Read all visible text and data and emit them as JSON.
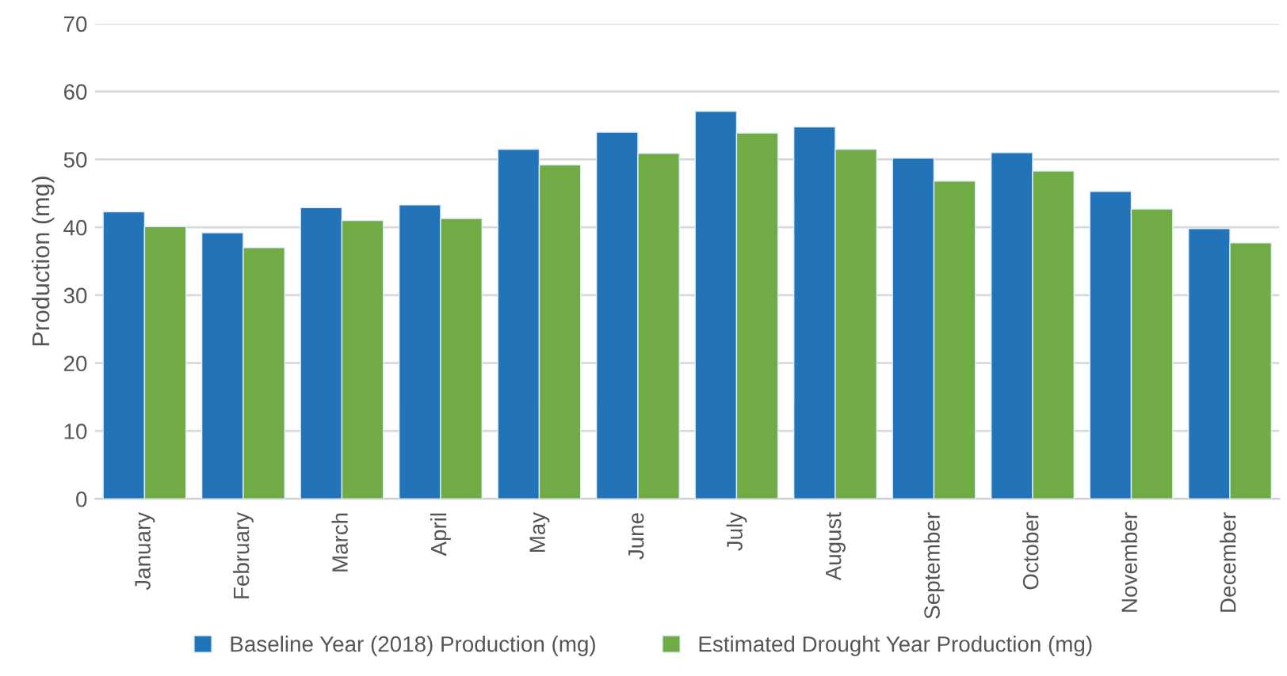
{
  "chart_data": {
    "type": "bar",
    "ylabel": "Production (mg)",
    "categories": [
      "January",
      "February",
      "March",
      "April",
      "May",
      "June",
      "July",
      "August",
      "September",
      "October",
      "November",
      "December"
    ],
    "series": [
      {
        "name": "Baseline Year (2018) Production (mg)",
        "color": "#2273b8",
        "values": [
          42.3,
          39.2,
          42.9,
          43.3,
          51.5,
          54.0,
          57.1,
          54.8,
          50.2,
          51.0,
          45.3,
          39.8
        ]
      },
      {
        "name": "Estimated Drought Year Production (mg)",
        "color": "#70ab46",
        "values": [
          40.1,
          37.0,
          41.0,
          41.3,
          49.2,
          50.9,
          53.9,
          51.5,
          46.8,
          48.3,
          42.7,
          37.7
        ]
      }
    ],
    "ylim": [
      0,
      70
    ],
    "yticks": [
      0,
      10,
      20,
      30,
      40,
      50,
      60,
      70
    ],
    "grid": "y",
    "legend": "bottom"
  }
}
